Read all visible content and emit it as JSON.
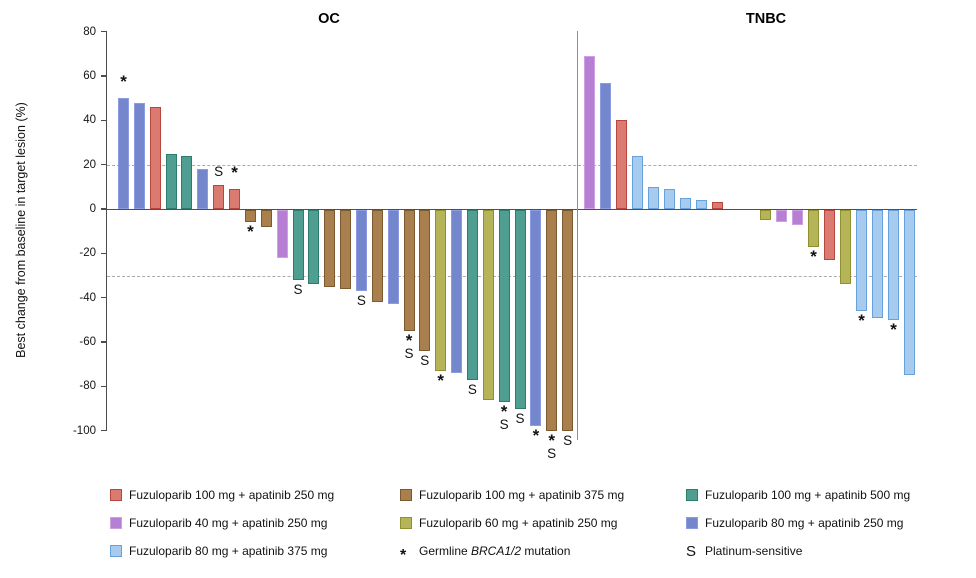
{
  "chart_data": {
    "type": "bar",
    "subtype": "waterfall",
    "ylabel": "Best change from baseline in target lesion (%)",
    "ylim": [
      -100,
      80
    ],
    "yticks": [
      80,
      60,
      40,
      20,
      0,
      -20,
      -40,
      -60,
      -80,
      -100
    ],
    "reference_lines": [
      20,
      -30
    ],
    "grid": false,
    "marker_meanings": {
      "*": "Germline BRCA1/2 mutation",
      "S": "Platinum-sensitive"
    },
    "groups": {
      "f100a250": {
        "label": "Fuzuloparib 100 mg + apatinib 250 mg",
        "fill": "#db7a70",
        "border": "#b8453e"
      },
      "f40a250": {
        "label": "Fuzuloparib 40 mg + apatinib 250 mg",
        "fill": "#b67fd3",
        "border": "#cf9fe4"
      },
      "f80a375": {
        "label": "Fuzuloparib 80 mg + apatinib 375 mg",
        "fill": "#a6cbef",
        "border": "#67a2dc"
      },
      "f100a375": {
        "label": "Fuzuloparib 100 mg + apatinib 375 mg",
        "fill": "#a87f4d",
        "border": "#7b5a2f"
      },
      "f60a250": {
        "label": "Fuzuloparib 60 mg + apatinib 250 mg",
        "fill": "#b5b458",
        "border": "#90902e"
      },
      "f100a500": {
        "label": "Fuzuloparib 100 mg + apatinib 500 mg",
        "fill": "#4e9e91",
        "border": "#2e7c6d"
      },
      "f80a250": {
        "label": "Fuzuloparib 80 mg + apatinib 250 mg",
        "fill": "#7486cc",
        "border": "#8d9ce2"
      }
    },
    "panels": [
      {
        "title": "OC",
        "bars": [
          {
            "group": "f80a250",
            "value": 50,
            "markers": [
              "*"
            ]
          },
          {
            "group": "f80a250",
            "value": 48
          },
          {
            "group": "f100a250",
            "value": 46
          },
          {
            "group": "f100a500",
            "value": 25
          },
          {
            "group": "f100a500",
            "value": 24
          },
          {
            "group": "f80a250",
            "value": 18
          },
          {
            "group": "f100a250",
            "value": 11,
            "markers": [
              "S"
            ]
          },
          {
            "group": "f100a250",
            "value": 9,
            "markers": [
              "*"
            ]
          },
          {
            "group": "f100a375",
            "value": -6,
            "markers": [
              "*"
            ]
          },
          {
            "group": "f100a375",
            "value": -8
          },
          {
            "group": "f40a250",
            "value": -22
          },
          {
            "group": "f100a500",
            "value": -32,
            "markers": [
              "S"
            ]
          },
          {
            "group": "f100a500",
            "value": -34
          },
          {
            "group": "f100a375",
            "value": -35
          },
          {
            "group": "f100a375",
            "value": -36
          },
          {
            "group": "f80a250",
            "value": -37,
            "markers": [
              "S"
            ]
          },
          {
            "group": "f100a375",
            "value": -42
          },
          {
            "group": "f80a250",
            "value": -43
          },
          {
            "group": "f100a375",
            "value": -55,
            "markers": [
              "*",
              "S"
            ]
          },
          {
            "group": "f100a375",
            "value": -64,
            "markers": [
              "S"
            ]
          },
          {
            "group": "f60a250",
            "value": -73,
            "markers": [
              "*"
            ]
          },
          {
            "group": "f80a250",
            "value": -74
          },
          {
            "group": "f100a500",
            "value": -77,
            "markers": [
              "S"
            ]
          },
          {
            "group": "f60a250",
            "value": -86
          },
          {
            "group": "f100a500",
            "value": -87,
            "markers": [
              "*",
              "S"
            ]
          },
          {
            "group": "f100a500",
            "value": -90,
            "markers": [
              "S"
            ]
          },
          {
            "group": "f80a250",
            "value": -98,
            "markers": [
              "*"
            ]
          },
          {
            "group": "f100a375",
            "value": -100,
            "markers": [
              "*",
              "S"
            ]
          },
          {
            "group": "f100a375",
            "value": -100,
            "markers": [
              "S"
            ]
          }
        ]
      },
      {
        "title": "TNBC",
        "bars": [
          {
            "group": "f40a250",
            "value": 69
          },
          {
            "group": "f80a250",
            "value": 57
          },
          {
            "group": "f100a250",
            "value": 40
          },
          {
            "group": "f80a375",
            "value": 24
          },
          {
            "group": "f80a375",
            "value": 10
          },
          {
            "group": "f80a375",
            "value": 9
          },
          {
            "group": "f80a375",
            "value": 5
          },
          {
            "group": "f80a375",
            "value": 4
          },
          {
            "group": "f100a250",
            "value": 3
          },
          {
            "group": null,
            "value": 0
          },
          {
            "group": null,
            "value": 0
          },
          {
            "group": "f60a250",
            "value": -5
          },
          {
            "group": "f40a250",
            "value": -6
          },
          {
            "group": "f40a250",
            "value": -7
          },
          {
            "group": "f60a250",
            "value": -17,
            "markers": [
              "*"
            ]
          },
          {
            "group": "f100a250",
            "value": -23
          },
          {
            "group": "f60a250",
            "value": -34
          },
          {
            "group": "f80a375",
            "value": -46,
            "markers": [
              "*"
            ]
          },
          {
            "group": "f80a375",
            "value": -49
          },
          {
            "group": "f80a375",
            "value": -50,
            "markers": [
              "*"
            ]
          },
          {
            "group": "f80a375",
            "value": -75
          }
        ]
      }
    ]
  },
  "legend": {
    "columns": [
      {
        "items": [
          {
            "type": "swatch",
            "group": "f100a250"
          },
          {
            "type": "swatch",
            "group": "f40a250"
          },
          {
            "type": "swatch",
            "group": "f80a375"
          }
        ]
      },
      {
        "items": [
          {
            "type": "swatch",
            "group": "f100a375"
          },
          {
            "type": "swatch",
            "group": "f60a250"
          },
          {
            "type": "symbol",
            "symbol": "*",
            "label_prefix": "Germline ",
            "label_italic": "BRCA1/2",
            "label_suffix": " mutation"
          }
        ]
      },
      {
        "items": [
          {
            "type": "swatch",
            "group": "f100a500"
          },
          {
            "type": "swatch",
            "group": "f80a250"
          },
          {
            "type": "symbol",
            "symbol": "S",
            "label": "Platinum-sensitive"
          }
        ]
      }
    ]
  }
}
